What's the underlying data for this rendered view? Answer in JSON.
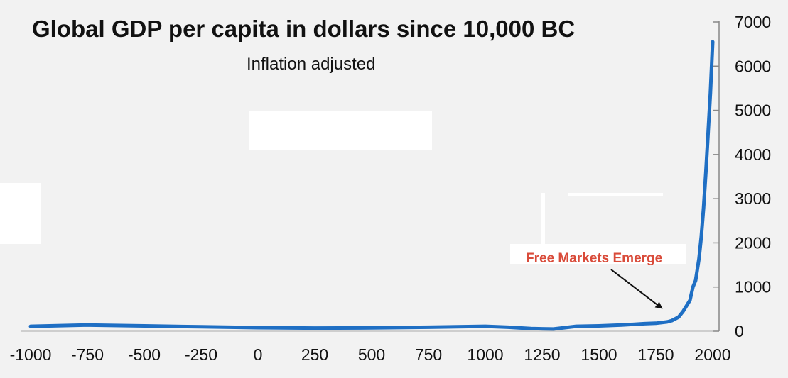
{
  "chart_data": {
    "type": "line",
    "title": "Global GDP per capita in dollars since 10,000 BC",
    "subtitle": "Inflation adjusted",
    "xlabel": "",
    "ylabel": "",
    "xlim": [
      -1000,
      2000
    ],
    "ylim": [
      0,
      7000
    ],
    "x_ticks": [
      "-1000",
      "-750",
      "-500",
      "-250",
      "0",
      "250",
      "500",
      "750",
      "1000",
      "1250",
      "1500",
      "1750",
      "2000"
    ],
    "y_ticks": [
      "0",
      "1000",
      "2000",
      "3000",
      "4000",
      "5000",
      "6000",
      "7000"
    ],
    "y_axis_side": "right",
    "grid": false,
    "series": [
      {
        "name": "GDP per capita",
        "color": "#1f6fc4",
        "x": [
          -1000,
          -750,
          -500,
          -250,
          0,
          250,
          500,
          750,
          1000,
          1100,
          1200,
          1300,
          1400,
          1500,
          1600,
          1700,
          1750,
          1800,
          1820,
          1850,
          1870,
          1900,
          1913,
          1925,
          1940,
          1950,
          1960,
          1970,
          1980,
          1990,
          2000
        ],
        "y": [
          110,
          140,
          120,
          100,
          80,
          70,
          75,
          90,
          110,
          90,
          60,
          50,
          110,
          120,
          140,
          170,
          180,
          210,
          240,
          320,
          450,
          700,
          1000,
          1150,
          1650,
          2150,
          2800,
          3600,
          4500,
          5400,
          6550
        ]
      }
    ],
    "annotations": [
      {
        "text": "Free Markets Emerge",
        "color": "#d94b3a",
        "points_to_x": 1775,
        "points_to_y": 300
      }
    ]
  }
}
